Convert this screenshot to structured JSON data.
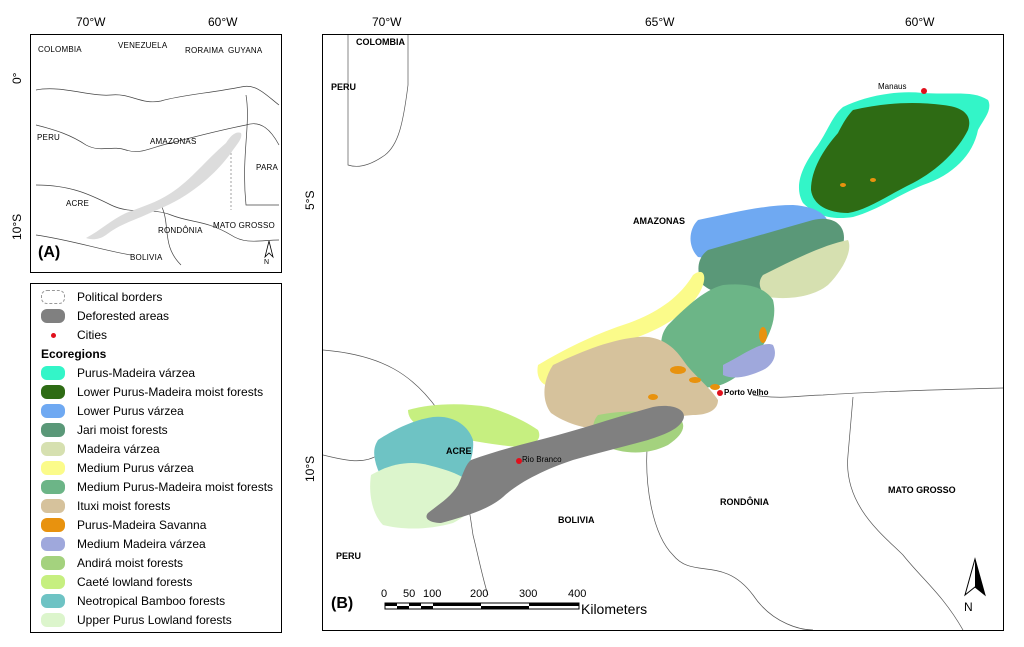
{
  "inset": {
    "lon_ticks": [
      "70°W",
      "60°W"
    ],
    "lat_ticks": [
      "0°",
      "10°S"
    ],
    "labels": {
      "colombia": "COLOMBIA",
      "venezuela": "VENEZUELA",
      "roraima": "RORAIMA",
      "guyana": "GUYANA",
      "peru": "PERU",
      "amazonas": "AMAZONAS",
      "para": "PARA",
      "acre": "ACRE",
      "mato_grosso": "MATO GROSSO",
      "rondonia": "RONDÔNIA",
      "bolivia": "BOLIVIA"
    },
    "panel_label": "(A)",
    "north": "N"
  },
  "main": {
    "lon_ticks": [
      "70°W",
      "65°W",
      "60°W"
    ],
    "lat_ticks": [
      "5°S",
      "10°S"
    ],
    "labels": {
      "colombia": "COLOMBIA",
      "peru_top": "PERU",
      "amazonas": "AMAZONAS",
      "acre": "ACRE",
      "bolivia": "BOLIVIA",
      "rondonia": "RONDÔNIA",
      "mato_grosso": "MATO GROSSO",
      "peru_bottom": "PERU"
    },
    "cities": {
      "manaus": "Manaus",
      "porto_velho": "Porto Velho",
      "rio_branco": "Rio Branco"
    },
    "panel_label": "(B)",
    "north": "N",
    "scale": {
      "ticks": [
        "0",
        "50",
        "100",
        "200",
        "300",
        "400"
      ],
      "unit": "Kilometers"
    }
  },
  "legend": {
    "items": [
      {
        "label": "Political borders",
        "color": "#ffffff"
      },
      {
        "label": "Deforested areas",
        "color": "#808080"
      },
      {
        "label": "Cities",
        "color": "#e0101c"
      }
    ],
    "ecoregions_title": "Ecoregions",
    "ecoregions": [
      {
        "label": "Purus-Madeira várzea",
        "color": "#33f5c8"
      },
      {
        "label": "Lower Purus-Madeira moist forests",
        "color": "#2e6b14"
      },
      {
        "label": "Lower Purus várzea",
        "color": "#6fa9f2"
      },
      {
        "label": "Jari moist forests",
        "color": "#5a9878"
      },
      {
        "label": "Madeira várzea",
        "color": "#d6e0b0"
      },
      {
        "label": "Medium Purus várzea",
        "color": "#fbfb8a"
      },
      {
        "label": "Medium Purus-Madeira moist forests",
        "color": "#6cb587"
      },
      {
        "label": "Ituxi moist forests",
        "color": "#d6c29c"
      },
      {
        "label": "Purus-Madeira Savanna",
        "color": "#e8920e"
      },
      {
        "label": "Medium Madeira várzea",
        "color": "#9fa8dc"
      },
      {
        "label": "Andirá moist forests",
        "color": "#a4d27e"
      },
      {
        "label": "Caeté lowland forests",
        "color": "#c6ef80"
      },
      {
        "label": "Neotropical Bamboo forests",
        "color": "#6ec3c4"
      },
      {
        "label": "Upper Purus Lowland forests",
        "color": "#dcf5cc"
      }
    ]
  }
}
